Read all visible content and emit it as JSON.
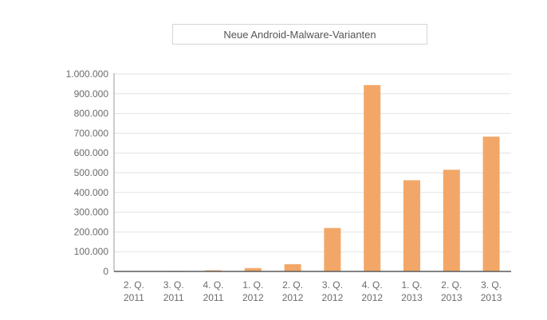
{
  "chart_data": {
    "type": "bar",
    "legend_label": "Neue Android-Malware-Varianten",
    "legend_position": "top-center",
    "categories": [
      [
        "2. Q.",
        "2011"
      ],
      [
        "3. Q.",
        "2011"
      ],
      [
        "4. Q.",
        "2011"
      ],
      [
        "1. Q.",
        "2012"
      ],
      [
        "2. Q.",
        "2012"
      ],
      [
        "3. Q.",
        "2012"
      ],
      [
        "4. Q.",
        "2012"
      ],
      [
        "1. Q.",
        "2013"
      ],
      [
        "2. Q.",
        "2013"
      ],
      [
        "3. Q.",
        "2013"
      ]
    ],
    "series": [
      {
        "name": "Neue Android-Malware-Varianten",
        "values": [
          1500,
          2500,
          6000,
          17000,
          37000,
          220000,
          944000,
          462000,
          515000,
          683000
        ]
      }
    ],
    "ylim": [
      0,
      1000000
    ],
    "yticks": [
      0,
      100000,
      200000,
      300000,
      400000,
      500000,
      600000,
      700000,
      800000,
      900000,
      1000000
    ],
    "ytick_labels": [
      "0",
      "100.000",
      "200.000",
      "300.000",
      "400.000",
      "500.000",
      "600.000",
      "700.000",
      "800.000",
      "900.000",
      "1.000.000"
    ],
    "grid": true,
    "bar_color": "#f2a768"
  }
}
